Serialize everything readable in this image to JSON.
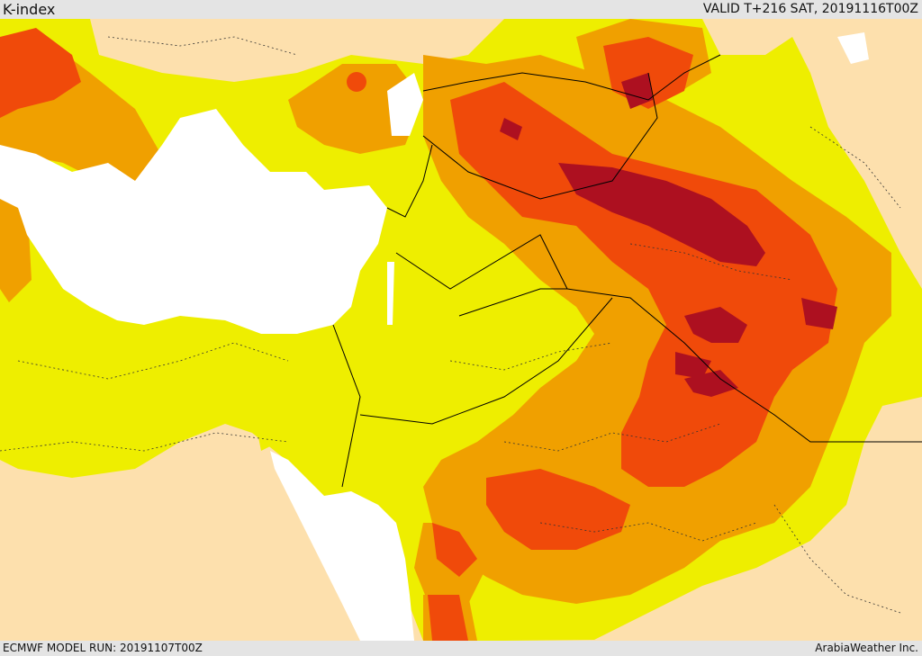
{
  "header": {
    "title": "K-index",
    "valid": "VALID T+216 SAT, 20191116T00Z"
  },
  "footer": {
    "model_run": "ECMWF MODEL RUN: 20191107T00Z",
    "credit": "ArabiaWeather Inc."
  },
  "map": {
    "region": "Middle East",
    "field": "K-index",
    "colors": {
      "background": "#fde0ad",
      "water": "#ffffff",
      "level1": "#eeee00",
      "level2": "#f0a000",
      "level3": "#f04a0a",
      "level4": "#ad1020",
      "border": "#000000"
    }
  }
}
